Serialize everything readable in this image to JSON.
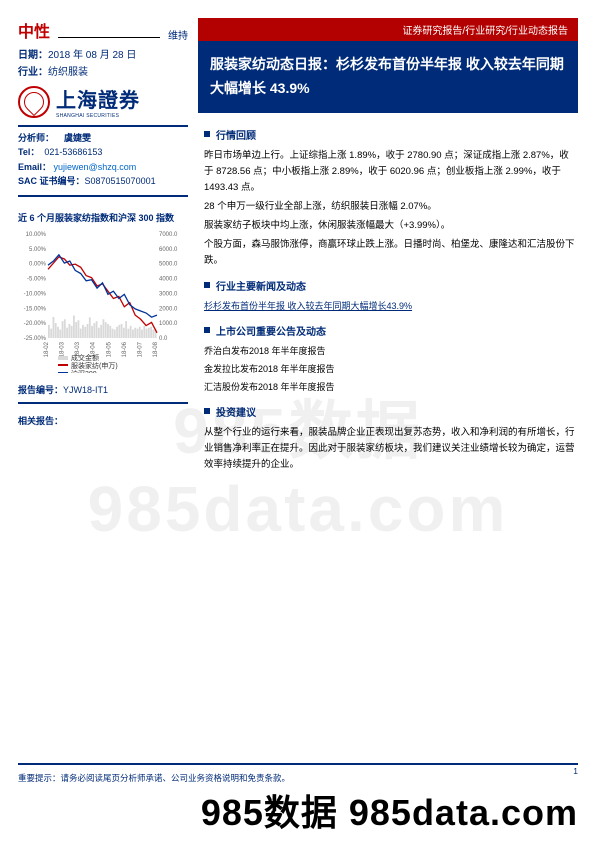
{
  "rating": {
    "label": "中性",
    "hold": "维持"
  },
  "meta": {
    "date_label": "日期：",
    "date": "2018 年 08 月 28 日",
    "industry_label": "行业：",
    "industry": "纺织服装",
    "brand_cn": "上海證券",
    "brand_en": "SHANGHAI SECURITIES"
  },
  "analyst": {
    "label": "分析师：",
    "name": "虞婕雯",
    "tel_label": "Tel：",
    "tel": "021-53686153",
    "email_label": "Email：",
    "email": "yujiewen@shzq.com",
    "sac_label": "SAC 证书编号：",
    "sac": "S0870515070001"
  },
  "chart": {
    "title": "近 6 个月服装家纺指数和沪深 300 指数",
    "y_left_ticks": [
      "10.00%",
      "5.00%",
      "0.00%",
      "-5.00%",
      "-10.00%",
      "-15.00%",
      "-20.00%",
      "-25.00%"
    ],
    "y_right_ticks": [
      "7000.0",
      "6000.0",
      "5000.0",
      "4000.0",
      "3000.0",
      "2000.0",
      "1000.0",
      "0.0"
    ],
    "x_ticks": [
      "18-02",
      "18-03",
      "18-03",
      "18-04",
      "18-05",
      "18-06",
      "18-07",
      "18-08"
    ],
    "legend": [
      "成交金额",
      "服装家纺(申万)",
      "沪深300"
    ],
    "colors": {
      "bar": "#d9d9d9",
      "line1": "#c00000",
      "line2": "#003399",
      "grid": "#e6e6e6"
    },
    "line1_pts": [
      [
        0,
        0.34
      ],
      [
        0.05,
        0.28
      ],
      [
        0.1,
        0.22
      ],
      [
        0.15,
        0.24
      ],
      [
        0.2,
        0.3
      ],
      [
        0.25,
        0.29
      ],
      [
        0.3,
        0.32
      ],
      [
        0.35,
        0.4
      ],
      [
        0.4,
        0.42
      ],
      [
        0.45,
        0.5
      ],
      [
        0.5,
        0.48
      ],
      [
        0.55,
        0.55
      ],
      [
        0.6,
        0.62
      ],
      [
        0.65,
        0.6
      ],
      [
        0.7,
        0.7
      ],
      [
        0.75,
        0.66
      ],
      [
        0.8,
        0.78
      ],
      [
        0.85,
        0.82
      ],
      [
        0.9,
        0.88
      ],
      [
        0.95,
        0.85
      ],
      [
        1,
        0.95
      ]
    ],
    "line2_pts": [
      [
        0,
        0.3
      ],
      [
        0.05,
        0.26
      ],
      [
        0.1,
        0.2
      ],
      [
        0.15,
        0.28
      ],
      [
        0.2,
        0.26
      ],
      [
        0.25,
        0.35
      ],
      [
        0.3,
        0.38
      ],
      [
        0.35,
        0.45
      ],
      [
        0.4,
        0.44
      ],
      [
        0.45,
        0.52
      ],
      [
        0.5,
        0.47
      ],
      [
        0.55,
        0.58
      ],
      [
        0.6,
        0.55
      ],
      [
        0.65,
        0.62
      ],
      [
        0.7,
        0.58
      ],
      [
        0.75,
        0.68
      ],
      [
        0.8,
        0.72
      ],
      [
        0.85,
        0.74
      ],
      [
        0.9,
        0.76
      ],
      [
        0.95,
        0.8
      ],
      [
        1,
        0.78
      ]
    ],
    "bar_heights": [
      0.28,
      0.2,
      0.45,
      0.32,
      0.24,
      0.18,
      0.36,
      0.4,
      0.22,
      0.3,
      0.26,
      0.48,
      0.34,
      0.38,
      0.2,
      0.28,
      0.24,
      0.3,
      0.44,
      0.26,
      0.32,
      0.36,
      0.22,
      0.28,
      0.4,
      0.34,
      0.3,
      0.26,
      0.2,
      0.18,
      0.24,
      0.28,
      0.3,
      0.22,
      0.36,
      0.2,
      0.26,
      0.18,
      0.22,
      0.2,
      0.24,
      0.18,
      0.26,
      0.2,
      0.22,
      0.24,
      0.18,
      0.2
    ]
  },
  "report_id_label": "报告编号：",
  "report_id": "YJW18-IT1",
  "related_label": "相关报告：",
  "banner": "证券研究报告/行业研究/行业动态报告",
  "title": "服装家纺动态日报：杉杉发布首份半年报  收入较去年同期大幅增长 43.9%",
  "sections": {
    "s1": {
      "h": "行情回顾",
      "p": [
        "昨日市场单边上行。上证综指上涨 1.89%，收于 2780.90 点；深证成指上涨 2.87%，收于 8728.56 点；中小板指上涨 2.89%，收于 6020.96 点；创业板指上涨 2.99%，收于 1493.43 点。",
        "28 个申万一级行业全部上涨，纺织服装日涨幅 2.07%。",
        "服装家纺子板块中均上涨，休闲服装涨幅最大（+3.99%）。",
        "个股方面，森马服饰涨停，商赢环球止跌上涨。日播时尚、柏堡龙、康隆达和汇洁股份下跌。"
      ]
    },
    "s2": {
      "h": "行业主要新闻及动态",
      "link": "杉杉发布首份半年报  收入较去年同期大幅增长43.9%"
    },
    "s3": {
      "h": "上市公司重要公告及动态",
      "items": [
        "乔治白发布2018  年半年度报告",
        "金发拉比发布2018  年半年度报告",
        "汇洁股份发布2018  年半年度报告"
      ]
    },
    "s4": {
      "h": "投资建议",
      "p": "从整个行业的运行来看，服装品牌企业正表现出复苏态势，收入和净利润的有所增长，行业销售净利率正在提升。因此对于服装家纺板块，我们建议关注业绩增长较为确定，运营效率持续提升的企业。"
    }
  },
  "footer": "重要提示：请务必阅读尾页分析师承诺、公司业务资格说明和免责条款。",
  "page": "1",
  "wm1": "985数据  985data.com",
  "wm2": "985数据  985data.com"
}
